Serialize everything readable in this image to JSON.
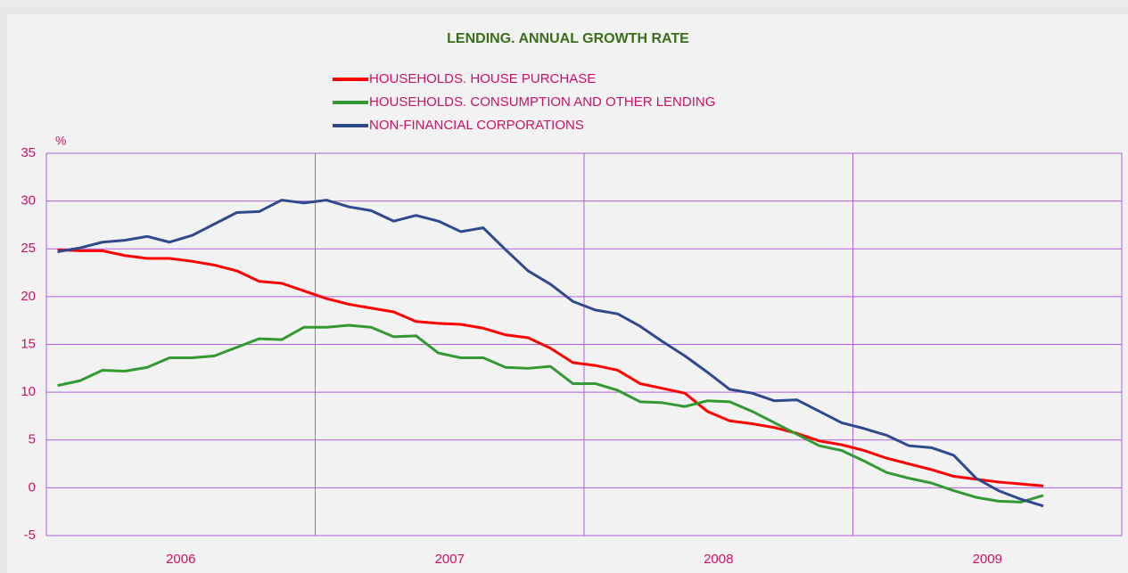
{
  "chart_data": {
    "type": "line",
    "title": "LENDING. ANNUAL GROWTH RATE",
    "y_label": "%",
    "categories": [
      null,
      null,
      null,
      null,
      null,
      null,
      null,
      null,
      null,
      null,
      null,
      null,
      null,
      null,
      null,
      null,
      null,
      null,
      null,
      null,
      null,
      null,
      null,
      null,
      null,
      null,
      null,
      null,
      null,
      null,
      null,
      null,
      null,
      null,
      null,
      null,
      null,
      null,
      null,
      null,
      null,
      null,
      null,
      null,
      null
    ],
    "year_labels": [
      "2006",
      "2007",
      "2008",
      "2009"
    ],
    "series": [
      {
        "name": "HOUSEHOLDS. HOUSE PURCHASE",
        "color": "#ff0000",
        "values": [
          24.9,
          24.8,
          24.8,
          24.3,
          24.0,
          24.0,
          23.7,
          23.3,
          22.7,
          21.6,
          21.4,
          20.6,
          19.8,
          19.2,
          18.8,
          18.4,
          17.4,
          17.2,
          17.1,
          16.7,
          16.0,
          15.7,
          14.6,
          13.1,
          12.8,
          12.3,
          10.9,
          10.4,
          9.9,
          8.0,
          7.0,
          6.7,
          6.3,
          5.7,
          4.9,
          4.5,
          3.9,
          3.1,
          2.5,
          1.9,
          1.2,
          0.9,
          0.6,
          0.4,
          0.2
        ]
      },
      {
        "name": "HOUSEHOLDS. CONSUMPTION AND OTHER LENDING",
        "color": "#339933",
        "values": [
          10.7,
          11.2,
          12.3,
          12.2,
          12.6,
          13.6,
          13.6,
          13.8,
          14.7,
          15.6,
          15.5,
          16.8,
          16.8,
          17.0,
          16.8,
          15.8,
          15.9,
          14.1,
          13.6,
          13.6,
          12.6,
          12.5,
          12.7,
          10.9,
          10.9,
          10.2,
          9.0,
          8.9,
          8.5,
          9.1,
          9.0,
          8.0,
          6.8,
          5.6,
          4.4,
          3.9,
          2.8,
          1.6,
          1.0,
          0.5,
          -0.3,
          -1.0,
          -1.4,
          -1.5,
          -0.8
        ]
      },
      {
        "name": "NON-FINANCIAL CORPORATIONS",
        "color": "#2e4a8c",
        "values": [
          24.7,
          25.1,
          25.7,
          25.9,
          26.3,
          25.7,
          26.4,
          27.6,
          28.8,
          28.9,
          30.1,
          29.8,
          30.1,
          29.4,
          29.0,
          27.9,
          28.5,
          27.9,
          26.8,
          27.2,
          24.9,
          22.7,
          21.3,
          19.5,
          18.6,
          18.2,
          16.9,
          15.3,
          13.8,
          12.1,
          10.3,
          9.9,
          9.1,
          9.2,
          8.0,
          6.8,
          6.2,
          5.5,
          4.4,
          4.2,
          3.4,
          1.0,
          -0.3,
          -1.2,
          -1.9
        ]
      }
    ],
    "ylim": [
      -5,
      35
    ],
    "yticks": [
      -5,
      0,
      5,
      10,
      15,
      20,
      25,
      30,
      35
    ],
    "grid": true
  }
}
